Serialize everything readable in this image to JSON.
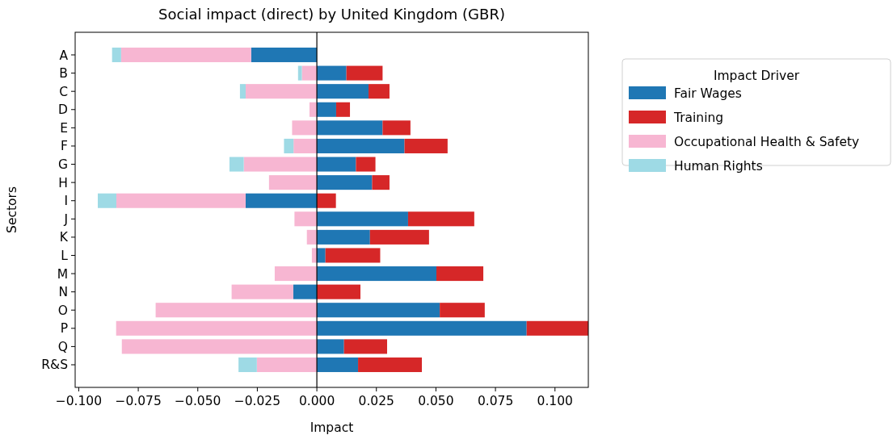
{
  "chart_data": {
    "type": "bar",
    "orientation": "horizontal",
    "stacked": true,
    "title": "Social impact (direct) by United Kingdom (GBR)",
    "xlabel": "Impact",
    "ylabel": "Sectors",
    "legend_title": "Impact Driver",
    "legend": "top right",
    "categories": [
      "A",
      "B",
      "C",
      "D",
      "E",
      "F",
      "G",
      "H",
      "I",
      "J",
      "K",
      "L",
      "M",
      "N",
      "O",
      "P",
      "Q",
      "R&S"
    ],
    "series": [
      {
        "name": "Fair Wages",
        "color": "#1f77b4",
        "values": [
          -0.0276,
          0.0124,
          0.0217,
          0.0081,
          0.0276,
          0.0368,
          0.0164,
          0.0232,
          -0.0299,
          0.0383,
          0.0223,
          0.0036,
          0.0502,
          -0.0099,
          0.0516,
          0.0881,
          0.0114,
          0.0173
        ]
      },
      {
        "name": "Training",
        "color": "#d62728",
        "values": [
          null,
          0.0152,
          0.0088,
          0.0058,
          0.0117,
          0.0181,
          0.0082,
          0.0073,
          0.008,
          0.0278,
          0.0248,
          0.023,
          0.0197,
          0.0183,
          0.0189,
          0.0259,
          0.0181,
          0.0268
        ]
      },
      {
        "name": "Occupational Health & Safety",
        "color": "#f7b6d2",
        "values": [
          -0.0546,
          -0.0063,
          -0.0299,
          -0.0031,
          -0.0104,
          -0.0098,
          -0.0307,
          -0.0201,
          -0.0543,
          -0.0094,
          -0.0042,
          -0.0021,
          -0.0177,
          -0.0259,
          -0.0677,
          -0.0843,
          -0.0819,
          -0.0252
        ]
      },
      {
        "name": "Human Rights",
        "color": "#9edae5",
        "values": [
          -0.0038,
          -0.0016,
          -0.0024,
          null,
          null,
          -0.004,
          -0.006,
          null,
          -0.0078,
          null,
          null,
          null,
          null,
          null,
          null,
          null,
          null,
          -0.0077
        ]
      }
    ],
    "xlim": [
      -0.1015,
      0.114
    ],
    "xticks": [
      {
        "value": -0.1,
        "label": "−0.100"
      },
      {
        "value": -0.075,
        "label": "−0.075"
      },
      {
        "value": -0.05,
        "label": "−0.050"
      },
      {
        "value": -0.025,
        "label": "−0.025"
      },
      {
        "value": 0,
        "label": "0.000"
      },
      {
        "value": 0.025,
        "label": "0.025"
      },
      {
        "value": 0.05,
        "label": "0.050"
      },
      {
        "value": 0.075,
        "label": "0.075"
      },
      {
        "value": 0.1,
        "label": "0.100"
      }
    ],
    "ref_lines": [
      {
        "axis": "x",
        "value": 0,
        "color": "#000000"
      }
    ]
  }
}
